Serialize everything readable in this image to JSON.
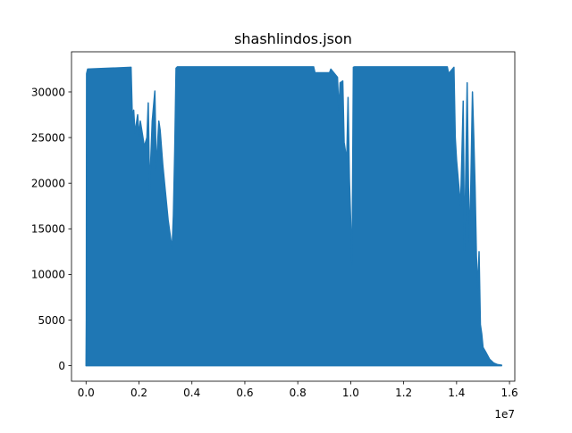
{
  "chart_data": {
    "type": "area",
    "title": "shashlindos.json",
    "xlabel": "",
    "ylabel": "",
    "x_offset_text": "1e7",
    "x_scale_factor": 10000000,
    "xlim": [
      -550000,
      16200000
    ],
    "ylim": [
      -1700,
      34400
    ],
    "grid": false,
    "x_ticks": [
      0,
      2000000,
      4000000,
      6000000,
      8000000,
      10000000,
      12000000,
      14000000,
      16000000
    ],
    "x_tick_labels": [
      "0.0",
      "0.2",
      "0.4",
      "0.6",
      "0.8",
      "1.0",
      "1.2",
      "1.4",
      "1.6"
    ],
    "y_ticks": [
      0,
      5000,
      10000,
      15000,
      20000,
      25000,
      30000
    ],
    "y_tick_labels": [
      "0",
      "5000",
      "10000",
      "15000",
      "20000",
      "25000",
      "30000"
    ],
    "color": "#1f77b4",
    "series": [
      {
        "values": [
          [
            0,
            0
          ],
          [
            10000,
            5000
          ],
          [
            20000,
            32000
          ],
          [
            60000,
            32500
          ],
          [
            1700000,
            32700
          ],
          [
            1750000,
            27000
          ],
          [
            1800000,
            28000
          ],
          [
            1850000,
            25500
          ],
          [
            1950000,
            27500
          ],
          [
            2000000,
            25200
          ],
          [
            2050000,
            26800
          ],
          [
            2150000,
            25000
          ],
          [
            2200000,
            24000
          ],
          [
            2300000,
            25000
          ],
          [
            2350000,
            28800
          ],
          [
            2400000,
            19200
          ],
          [
            2500000,
            26800
          ],
          [
            2600000,
            30100
          ],
          [
            2650000,
            21500
          ],
          [
            2750000,
            26800
          ],
          [
            2800000,
            25800
          ],
          [
            2900000,
            22000
          ],
          [
            3000000,
            19000
          ],
          [
            3100000,
            16000
          ],
          [
            3250000,
            12800
          ],
          [
            3300000,
            16500
          ],
          [
            3350000,
            23500
          ],
          [
            3400000,
            32600
          ],
          [
            3450000,
            32750
          ],
          [
            8600000,
            32750
          ],
          [
            8650000,
            32100
          ],
          [
            9200000,
            32100
          ],
          [
            9250000,
            32500
          ],
          [
            9500000,
            31600
          ],
          [
            9550000,
            28000
          ],
          [
            9600000,
            31000
          ],
          [
            9700000,
            31200
          ],
          [
            9750000,
            24500
          ],
          [
            9850000,
            22500
          ],
          [
            9900000,
            29400
          ],
          [
            9950000,
            20500
          ],
          [
            10050000,
            11000
          ],
          [
            10100000,
            32700
          ],
          [
            10150000,
            32750
          ],
          [
            13650000,
            32750
          ],
          [
            13700000,
            32000
          ],
          [
            13900000,
            32700
          ],
          [
            13950000,
            25000
          ],
          [
            14000000,
            22500
          ],
          [
            14150000,
            17500
          ],
          [
            14200000,
            23000
          ],
          [
            14250000,
            29000
          ],
          [
            14300000,
            12500
          ],
          [
            14400000,
            31000
          ],
          [
            14450000,
            19500
          ],
          [
            14500000,
            13500
          ],
          [
            14600000,
            30000
          ],
          [
            14650000,
            25000
          ],
          [
            14700000,
            19500
          ],
          [
            14750000,
            12000
          ],
          [
            14800000,
            8500
          ],
          [
            14850000,
            12500
          ],
          [
            14900000,
            4500
          ],
          [
            14950000,
            3500
          ],
          [
            15000000,
            2000
          ],
          [
            15100000,
            1500
          ],
          [
            15250000,
            700
          ],
          [
            15400000,
            300
          ],
          [
            15550000,
            120
          ],
          [
            15700000,
            60
          ]
        ]
      }
    ]
  }
}
